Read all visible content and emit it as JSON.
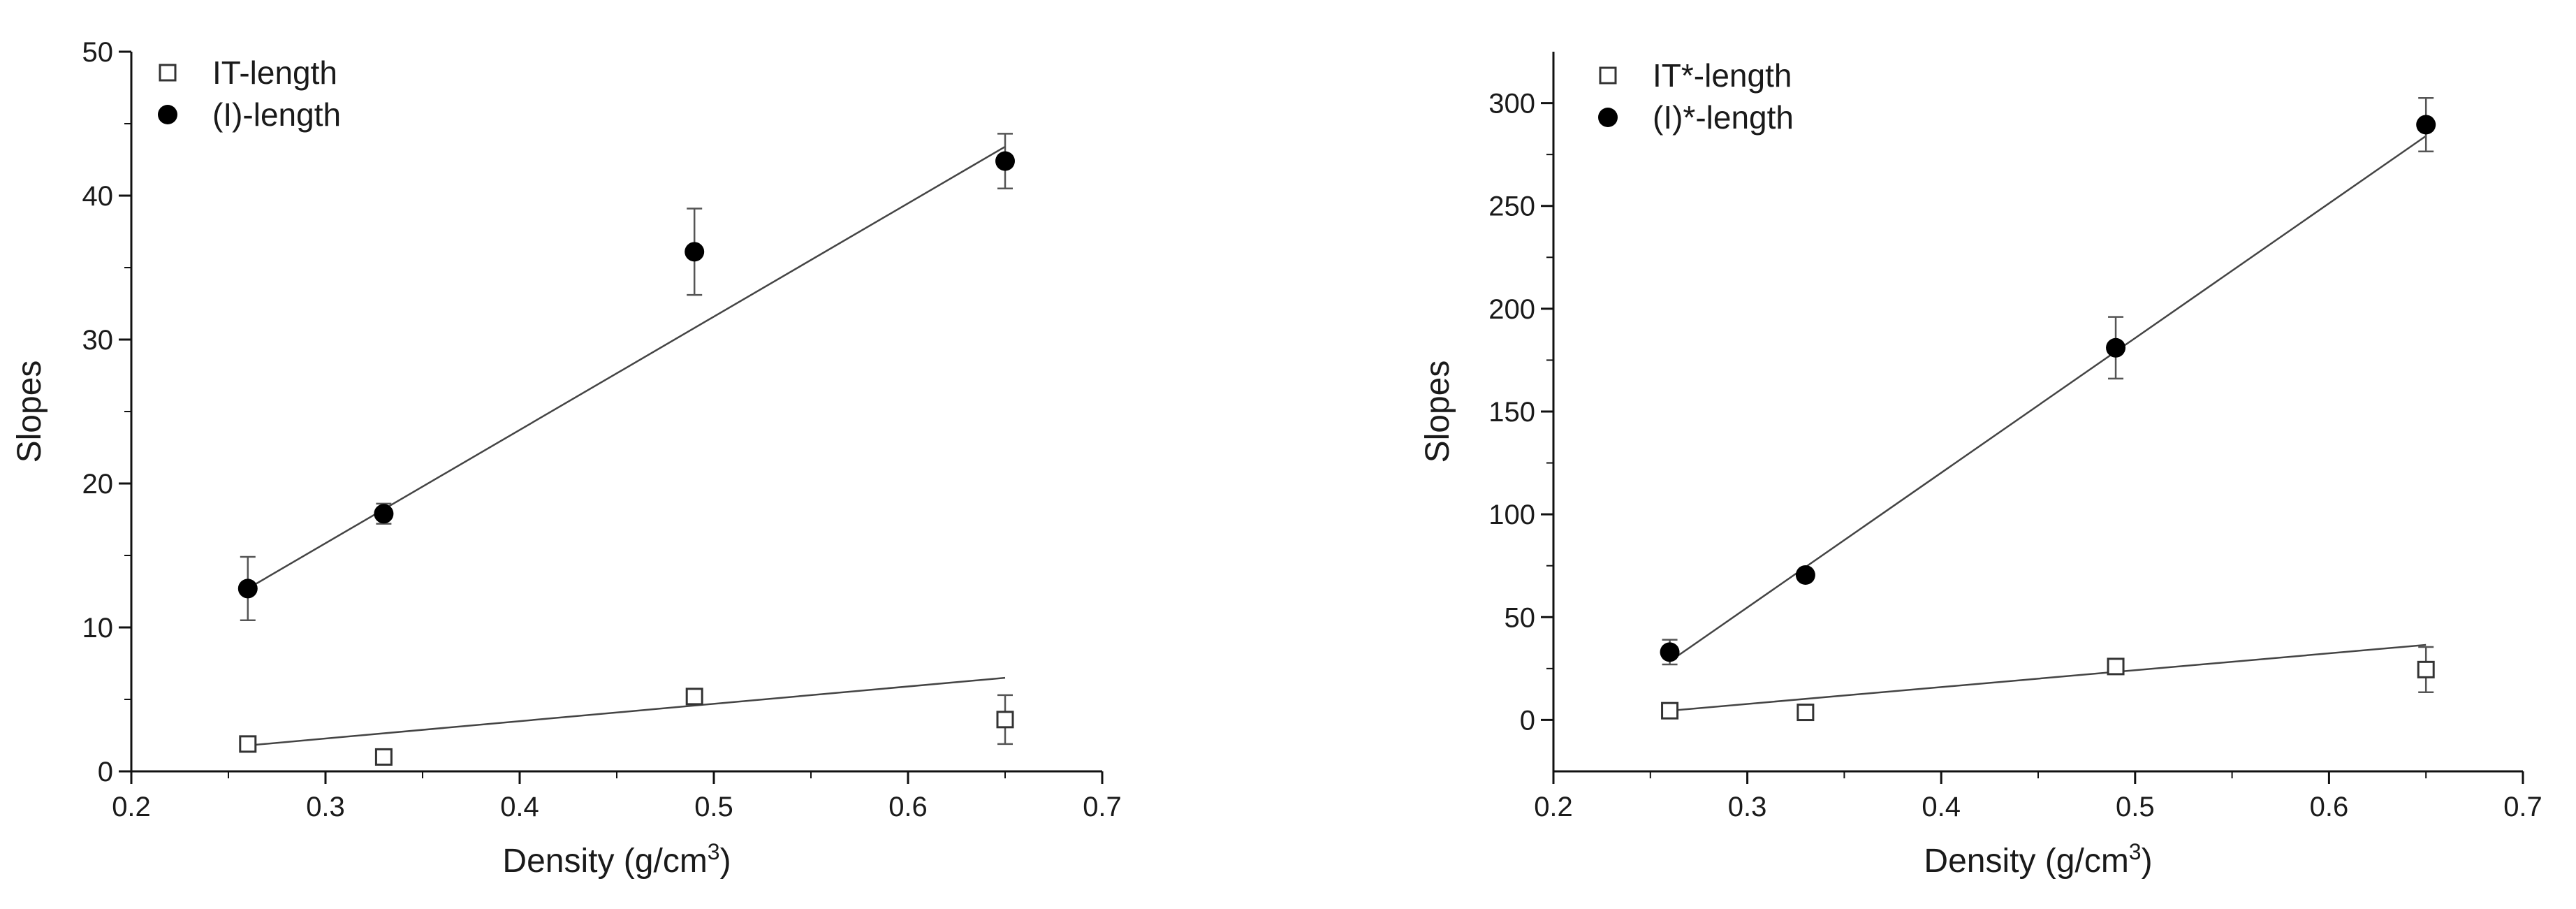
{
  "chart_data": [
    {
      "type": "scatter",
      "xlabel": "Density (g/cm",
      "xlabel_sup": "3",
      "xlabel_end": ")",
      "ylabel": "Slopes",
      "xlim": [
        0.2,
        0.7
      ],
      "ylim": [
        0,
        50
      ],
      "xticks": [
        0.2,
        0.3,
        0.4,
        0.5,
        0.6,
        0.7
      ],
      "yticks": [
        0,
        10,
        20,
        30,
        40,
        50
      ],
      "grid": false,
      "legend_position": "top-left",
      "series": [
        {
          "name": "IT-length",
          "marker": "open-square",
          "x": [
            0.26,
            0.33,
            0.49,
            0.65
          ],
          "y": [
            1.9,
            1.0,
            5.2,
            3.6
          ],
          "err": [
            0.3,
            0.2,
            0.5,
            1.7
          ],
          "fit": {
            "x": [
              0.26,
              0.65
            ],
            "y": [
              1.8,
              6.5
            ]
          }
        },
        {
          "name": "(I)-length",
          "marker": "filled-circle",
          "x": [
            0.26,
            0.33,
            0.49,
            0.65
          ],
          "y": [
            12.7,
            17.9,
            36.1,
            42.4
          ],
          "err": [
            2.2,
            0.7,
            3.0,
            1.9
          ],
          "fit": {
            "x": [
              0.26,
              0.65
            ],
            "y": [
              12.7,
              43.4
            ]
          }
        }
      ]
    },
    {
      "type": "scatter",
      "xlabel": "Density (g/cm",
      "xlabel_sup": "3",
      "xlabel_end": ")",
      "ylabel": "Slopes",
      "xlim": [
        0.2,
        0.7
      ],
      "ylim": [
        -25,
        325
      ],
      "xticks": [
        0.2,
        0.3,
        0.4,
        0.5,
        0.6,
        0.7
      ],
      "yticks": [
        0,
        50,
        100,
        150,
        200,
        250,
        300
      ],
      "grid": false,
      "legend_position": "top-left",
      "series": [
        {
          "name": "IT*-length",
          "marker": "open-square",
          "x": [
            0.26,
            0.33,
            0.49,
            0.65
          ],
          "y": [
            4.5,
            3.7,
            26.0,
            24.5
          ],
          "err": [
            2.0,
            2.5,
            3.0,
            11.0
          ],
          "fit": {
            "x": [
              0.26,
              0.65
            ],
            "y": [
              4.5,
              36.5
            ]
          }
        },
        {
          "name": "(I)*-length",
          "marker": "filled-circle",
          "x": [
            0.26,
            0.33,
            0.49,
            0.65
          ],
          "y": [
            33.0,
            70.5,
            181.0,
            289.5
          ],
          "err": [
            6.0,
            2.0,
            15.0,
            13.0
          ],
          "fit": {
            "x": [
              0.26,
              0.65
            ],
            "y": [
              28.5,
              284.0
            ]
          }
        }
      ]
    }
  ]
}
